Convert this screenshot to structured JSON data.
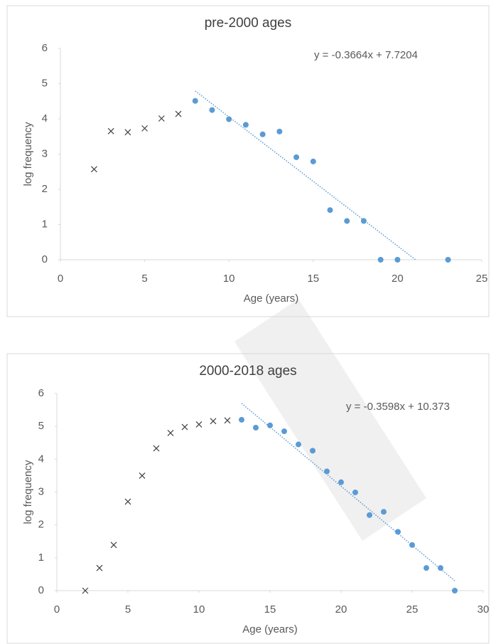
{
  "chart_data": [
    {
      "type": "scatter",
      "title": "pre-2000 ages",
      "xlabel": "Age (years)",
      "ylabel": "log frequency",
      "xlim": [
        0,
        25
      ],
      "xticks": [
        0,
        5,
        10,
        15,
        20,
        25
      ],
      "ylim": [
        0,
        6
      ],
      "yticks": [
        0,
        1,
        2,
        3,
        4,
        5,
        6
      ],
      "series": [
        {
          "marker": "x",
          "color": "#404040",
          "x": [
            2,
            3,
            4,
            5,
            6,
            7
          ],
          "values": [
            2.57,
            3.65,
            3.62,
            3.73,
            4.01,
            4.14
          ]
        },
        {
          "marker": "circle",
          "color": "#5b9bd5",
          "x": [
            8,
            9,
            10,
            11,
            12,
            13,
            14,
            15,
            16,
            17,
            18,
            19,
            20,
            23
          ],
          "values": [
            4.51,
            4.25,
            3.99,
            3.83,
            3.56,
            3.64,
            2.91,
            2.79,
            1.41,
            1.1,
            1.1,
            0,
            0,
            0
          ]
        }
      ],
      "trendline": {
        "label": "y = -0.3664x + 7.7204",
        "color": "#5b9bd5",
        "x": [
          8,
          21.07
        ],
        "values": [
          4.79,
          0
        ]
      }
    },
    {
      "type": "scatter",
      "title": "2000-2018 ages",
      "xlabel": "Age (years)",
      "ylabel": "log frequency",
      "xlim": [
        0,
        30
      ],
      "xticks": [
        0,
        5,
        10,
        15,
        20,
        25,
        30
      ],
      "ylim": [
        0,
        6
      ],
      "yticks": [
        0,
        1,
        2,
        3,
        4,
        5,
        6
      ],
      "series": [
        {
          "marker": "x",
          "color": "#404040",
          "x": [
            2,
            3,
            4,
            5,
            6,
            7,
            8,
            9,
            10,
            11,
            12
          ],
          "values": [
            0,
            0.69,
            1.39,
            2.71,
            3.5,
            4.33,
            4.8,
            4.98,
            5.06,
            5.16,
            5.18
          ]
        },
        {
          "marker": "circle",
          "color": "#5b9bd5",
          "x": [
            13,
            14,
            15,
            16,
            17,
            18,
            19,
            20,
            21,
            22,
            23,
            24,
            25,
            26,
            27,
            28
          ],
          "values": [
            5.2,
            4.96,
            5.03,
            4.85,
            4.45,
            4.26,
            3.63,
            3.3,
            2.99,
            2.3,
            2.4,
            1.79,
            1.39,
            0.69,
            0.69,
            0
          ]
        }
      ],
      "trendline": {
        "label": "y = -0.3598x + 10.373",
        "color": "#5b9bd5",
        "x": [
          13,
          28
        ],
        "values": [
          5.7,
          0.3
        ]
      }
    }
  ]
}
